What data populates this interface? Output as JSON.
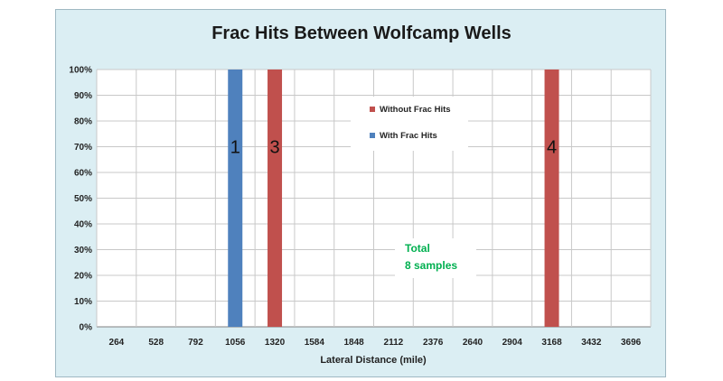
{
  "chart_data": {
    "type": "bar",
    "title": "Frac Hits Between Wolfcamp Wells",
    "xlabel": "Lateral Distance (mile)",
    "ylabel": "",
    "ylim": [
      0,
      100
    ],
    "y_ticks": [
      "0%",
      "10%",
      "20%",
      "30%",
      "40%",
      "50%",
      "60%",
      "70%",
      "80%",
      "90%",
      "100%"
    ],
    "categories": [
      "264",
      "528",
      "792",
      "1056",
      "1320",
      "1584",
      "1848",
      "2112",
      "2376",
      "2640",
      "2904",
      "3168",
      "3432",
      "3696"
    ],
    "series": [
      {
        "name": "Without Frac Hits",
        "color": "#c0504d",
        "values": [
          0,
          0,
          0,
          0,
          100,
          0,
          0,
          0,
          0,
          0,
          0,
          100,
          0,
          0
        ]
      },
      {
        "name": "With Frac Hits",
        "color": "#4f81bd",
        "values": [
          0,
          0,
          0,
          100,
          0,
          0,
          0,
          0,
          0,
          0,
          0,
          0,
          0,
          0
        ]
      }
    ],
    "bar_labels": [
      {
        "category": "1056",
        "text": "1"
      },
      {
        "category": "1320",
        "text": "3"
      },
      {
        "category": "3168",
        "text": "4"
      }
    ],
    "legend": [
      "Without Frac Hits",
      "With Frac Hits"
    ],
    "grid": true,
    "annotation": {
      "lines": [
        "Total",
        "8 samples"
      ],
      "color": "#00b050"
    }
  }
}
